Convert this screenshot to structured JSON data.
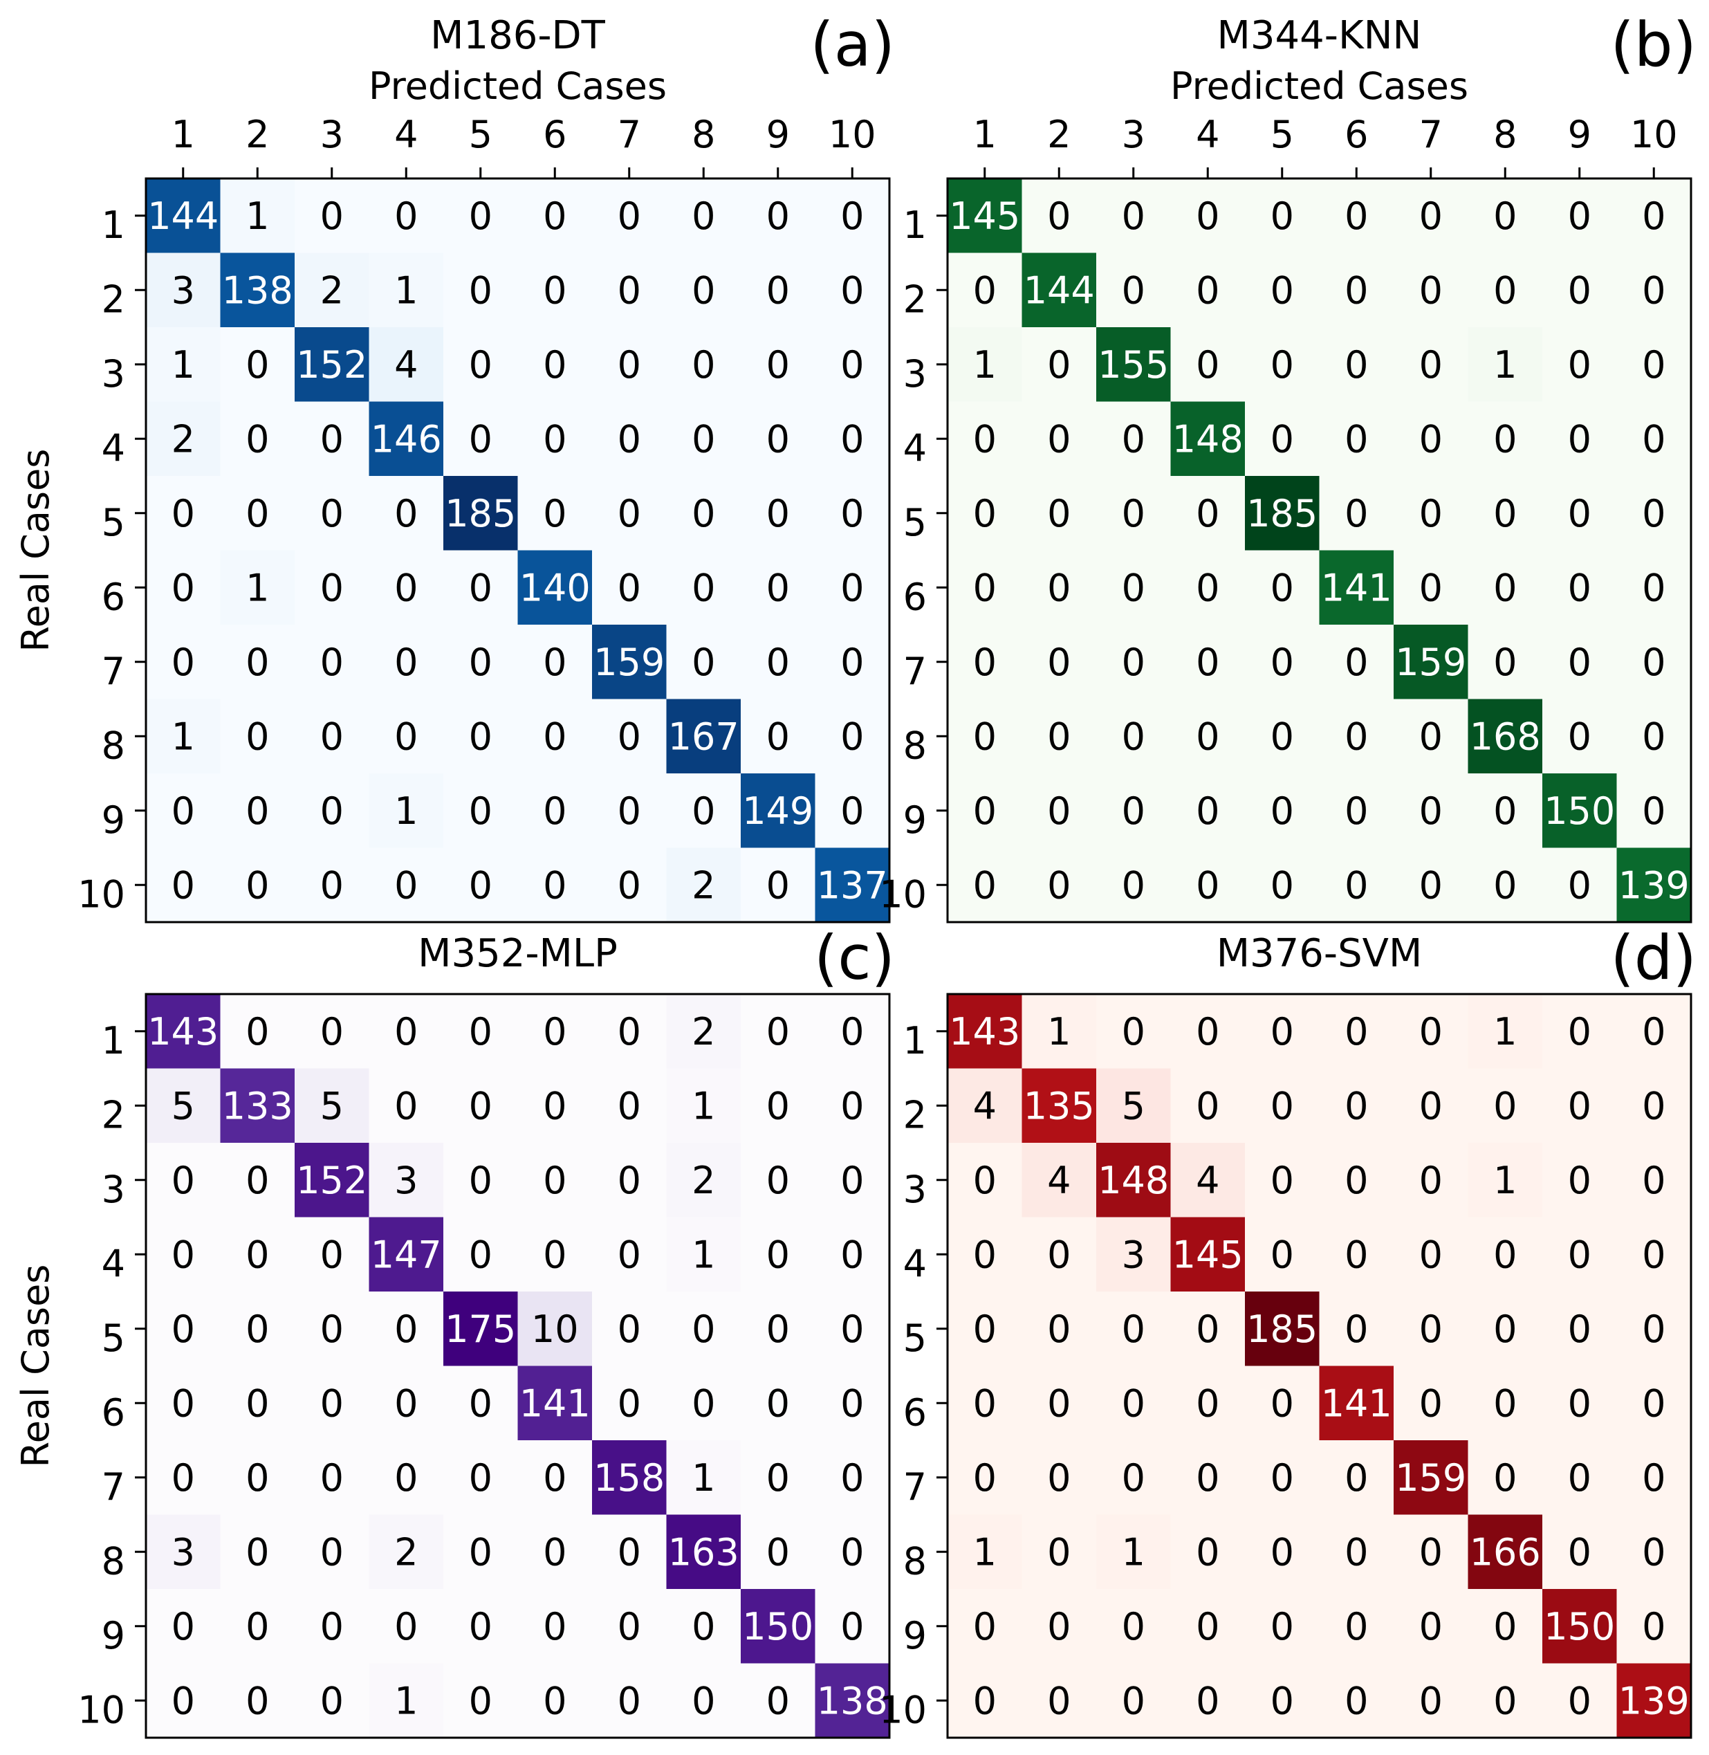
{
  "chart_data": [
    {
      "type": "heatmap",
      "panel_label": "(a)",
      "title": "M186-DT",
      "xlabel": "Predicted Cases",
      "ylabel": "Real Cases",
      "colormap": "Blues",
      "categories": [
        "1",
        "2",
        "3",
        "4",
        "5",
        "6",
        "7",
        "8",
        "9",
        "10"
      ],
      "matrix": [
        [
          144,
          1,
          0,
          0,
          0,
          0,
          0,
          0,
          0,
          0
        ],
        [
          3,
          138,
          2,
          1,
          0,
          0,
          0,
          0,
          0,
          0
        ],
        [
          1,
          0,
          152,
          4,
          0,
          0,
          0,
          0,
          0,
          0
        ],
        [
          2,
          0,
          0,
          146,
          0,
          0,
          0,
          0,
          0,
          0
        ],
        [
          0,
          0,
          0,
          0,
          185,
          0,
          0,
          0,
          0,
          0
        ],
        [
          0,
          1,
          0,
          0,
          0,
          140,
          0,
          0,
          0,
          0
        ],
        [
          0,
          0,
          0,
          0,
          0,
          0,
          159,
          0,
          0,
          0
        ],
        [
          1,
          0,
          0,
          0,
          0,
          0,
          0,
          167,
          0,
          0
        ],
        [
          0,
          0,
          0,
          1,
          0,
          0,
          0,
          0,
          149,
          0
        ],
        [
          0,
          0,
          0,
          0,
          0,
          0,
          0,
          2,
          0,
          137
        ]
      ]
    },
    {
      "type": "heatmap",
      "panel_label": "(b)",
      "title": "M344-KNN",
      "xlabel": "Predicted Cases",
      "ylabel": "",
      "colormap": "Greens",
      "categories": [
        "1",
        "2",
        "3",
        "4",
        "5",
        "6",
        "7",
        "8",
        "9",
        "10"
      ],
      "matrix": [
        [
          145,
          0,
          0,
          0,
          0,
          0,
          0,
          0,
          0,
          0
        ],
        [
          0,
          144,
          0,
          0,
          0,
          0,
          0,
          0,
          0,
          0
        ],
        [
          1,
          0,
          155,
          0,
          0,
          0,
          0,
          1,
          0,
          0
        ],
        [
          0,
          0,
          0,
          148,
          0,
          0,
          0,
          0,
          0,
          0
        ],
        [
          0,
          0,
          0,
          0,
          185,
          0,
          0,
          0,
          0,
          0
        ],
        [
          0,
          0,
          0,
          0,
          0,
          141,
          0,
          0,
          0,
          0
        ],
        [
          0,
          0,
          0,
          0,
          0,
          0,
          159,
          0,
          0,
          0
        ],
        [
          0,
          0,
          0,
          0,
          0,
          0,
          0,
          168,
          0,
          0
        ],
        [
          0,
          0,
          0,
          0,
          0,
          0,
          0,
          0,
          150,
          0
        ],
        [
          0,
          0,
          0,
          0,
          0,
          0,
          0,
          0,
          0,
          139
        ]
      ]
    },
    {
      "type": "heatmap",
      "panel_label": "(c)",
      "title": "M352-MLP",
      "xlabel": "",
      "ylabel": "Real Cases",
      "colormap": "Purples",
      "categories": [
        "1",
        "2",
        "3",
        "4",
        "5",
        "6",
        "7",
        "8",
        "9",
        "10"
      ],
      "matrix": [
        [
          143,
          0,
          0,
          0,
          0,
          0,
          0,
          2,
          0,
          0
        ],
        [
          5,
          133,
          5,
          0,
          0,
          0,
          0,
          1,
          0,
          0
        ],
        [
          0,
          0,
          152,
          3,
          0,
          0,
          0,
          2,
          0,
          0
        ],
        [
          0,
          0,
          0,
          147,
          0,
          0,
          0,
          1,
          0,
          0
        ],
        [
          0,
          0,
          0,
          0,
          175,
          10,
          0,
          0,
          0,
          0
        ],
        [
          0,
          0,
          0,
          0,
          0,
          141,
          0,
          0,
          0,
          0
        ],
        [
          0,
          0,
          0,
          0,
          0,
          0,
          158,
          1,
          0,
          0
        ],
        [
          3,
          0,
          0,
          2,
          0,
          0,
          0,
          163,
          0,
          0
        ],
        [
          0,
          0,
          0,
          0,
          0,
          0,
          0,
          0,
          150,
          0
        ],
        [
          0,
          0,
          0,
          1,
          0,
          0,
          0,
          0,
          0,
          138
        ]
      ]
    },
    {
      "type": "heatmap",
      "panel_label": "(d)",
      "title": "M376-SVM",
      "xlabel": "",
      "ylabel": "",
      "colormap": "Reds",
      "categories": [
        "1",
        "2",
        "3",
        "4",
        "5",
        "6",
        "7",
        "8",
        "9",
        "10"
      ],
      "matrix": [
        [
          143,
          1,
          0,
          0,
          0,
          0,
          0,
          1,
          0,
          0
        ],
        [
          4,
          135,
          5,
          0,
          0,
          0,
          0,
          0,
          0,
          0
        ],
        [
          0,
          4,
          148,
          4,
          0,
          0,
          0,
          1,
          0,
          0
        ],
        [
          0,
          0,
          3,
          145,
          0,
          0,
          0,
          0,
          0,
          0
        ],
        [
          0,
          0,
          0,
          0,
          185,
          0,
          0,
          0,
          0,
          0
        ],
        [
          0,
          0,
          0,
          0,
          0,
          141,
          0,
          0,
          0,
          0
        ],
        [
          0,
          0,
          0,
          0,
          0,
          0,
          159,
          0,
          0,
          0
        ],
        [
          1,
          0,
          1,
          0,
          0,
          0,
          0,
          166,
          0,
          0
        ],
        [
          0,
          0,
          0,
          0,
          0,
          0,
          0,
          0,
          150,
          0
        ],
        [
          0,
          0,
          0,
          0,
          0,
          0,
          0,
          0,
          0,
          139
        ]
      ]
    }
  ]
}
